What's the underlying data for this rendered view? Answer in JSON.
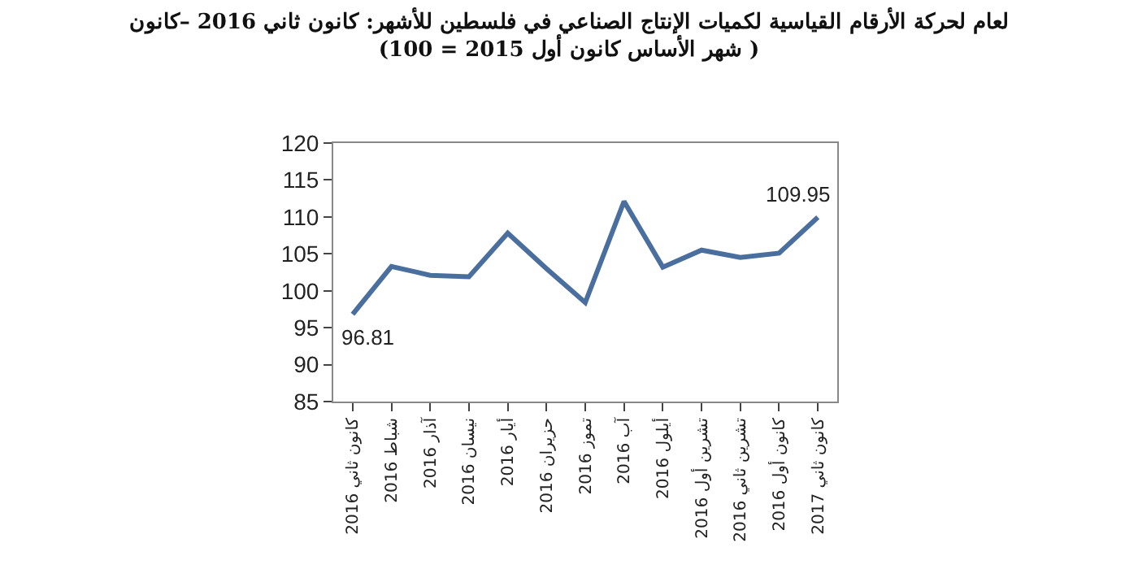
{
  "chart_data": {
    "type": "line",
    "title": "لعام لحركة الأرقام القياسية لكميات الإنتاج الصناعي في فلسطين للأشهر: كانون ثاني 2016 –كانون",
    "subtitle": "(شهر الأساس كانون أول 2015 = 100 )",
    "categories": [
      "كانون ثاني 2016",
      "شباط 2016",
      "آذار 2016",
      "نيسان 2016",
      "أيار 2016",
      "حزيران 2016",
      "تموز 2016",
      "آب 2016",
      "أيلول 2016",
      "تشرين أول 2016",
      "تشرين ثاني 2016",
      "كانون أول 2016",
      "كانون ثاني 2017"
    ],
    "series": [
      {
        "color": "#4a6f9e",
        "values": [
          96.81,
          103.3,
          102.1,
          101.9,
          107.8,
          103.0,
          98.4,
          112.1,
          103.2,
          105.5,
          104.5,
          105.1,
          109.95
        ],
        "value_labels": [
          "96.81",
          null,
          null,
          null,
          null,
          null,
          null,
          null,
          null,
          null,
          null,
          null,
          "109.95"
        ]
      }
    ],
    "ylim": [
      85,
      120
    ],
    "yticks": [
      85,
      90,
      95,
      100,
      105,
      110,
      115,
      120
    ],
    "grid": false,
    "marker": "none",
    "line_style": "solid"
  }
}
